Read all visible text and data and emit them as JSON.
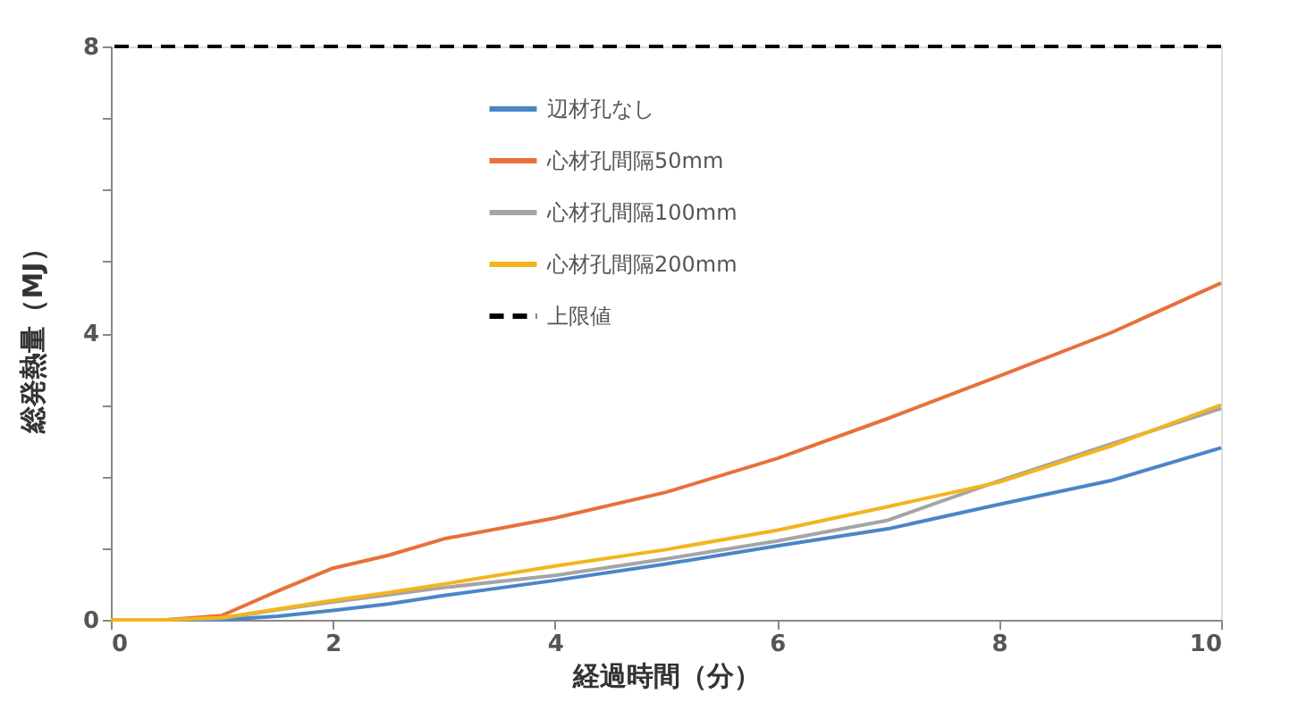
{
  "chart_data": {
    "type": "line",
    "xlabel": "経過時間（分）",
    "ylabel": "総発熱量（MJ）",
    "x": [
      0,
      0.5,
      1,
      1.5,
      2,
      2.5,
      3,
      4,
      5,
      6,
      7,
      8,
      9,
      10
    ],
    "series": [
      {
        "name": "辺材孔なし",
        "color": "#4a86c8",
        "values": [
          0,
          0,
          0,
          0.05,
          0.13,
          0.22,
          0.34,
          0.55,
          0.78,
          1.03,
          1.27,
          1.61,
          1.94,
          2.4
        ]
      },
      {
        "name": "心材孔間隔50mm",
        "color": "#e8703a",
        "values": [
          0,
          0,
          0.06,
          0.4,
          0.72,
          0.9,
          1.13,
          1.42,
          1.78,
          2.25,
          2.81,
          3.4,
          4.0,
          4.7
        ]
      },
      {
        "name": "心材孔間隔100mm",
        "color": "#a5a5a5",
        "values": [
          0,
          0,
          0.02,
          0.14,
          0.25,
          0.35,
          0.45,
          0.62,
          0.85,
          1.1,
          1.39,
          1.94,
          2.45,
          2.95
        ]
      },
      {
        "name": "心材孔間隔200mm",
        "color": "#f2b51e",
        "values": [
          0,
          0,
          0.03,
          0.15,
          0.27,
          0.38,
          0.5,
          0.75,
          0.98,
          1.25,
          1.58,
          1.92,
          2.42,
          3.0
        ]
      }
    ],
    "ref_lines": [
      {
        "axis": "y",
        "value": 8,
        "label": "上限値",
        "color": "#000000",
        "line_style": "dashed"
      }
    ],
    "xlim": [
      0,
      10
    ],
    "xticks": [
      0,
      2,
      4,
      6,
      8,
      10
    ],
    "ylim": [
      0,
      8
    ],
    "yticks": [
      0,
      {
        "value": 1,
        "label": null
      },
      {
        "value": 2,
        "label": null
      },
      {
        "value": 3,
        "label": null
      },
      4,
      {
        "value": 5,
        "label": null
      },
      {
        "value": 6,
        "label": null
      },
      {
        "value": 7,
        "label": null
      },
      8
    ],
    "grid": false,
    "legend": "top",
    "marker": "none",
    "line_style": "solid"
  }
}
